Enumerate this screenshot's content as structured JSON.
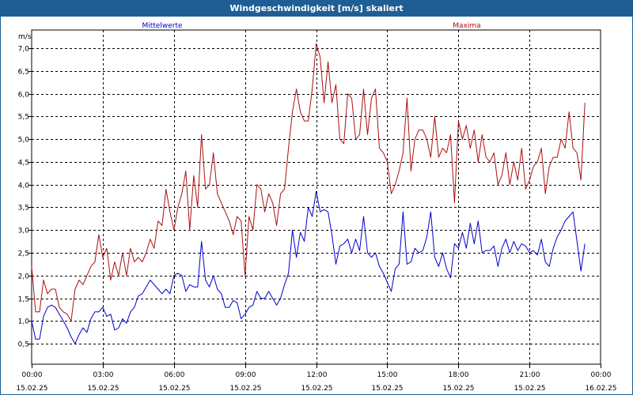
{
  "window": {
    "title": "Windgeschwindigkeit [m/s] skaliert"
  },
  "chart_data": {
    "type": "line",
    "title": "Windgeschwindigkeit [m/s] skaliert",
    "ylabel": "m/s",
    "ylim": [
      0.05,
      7.4
    ],
    "yticks": [
      0.5,
      1.0,
      1.5,
      2.0,
      2.5,
      3.0,
      3.5,
      4.0,
      4.5,
      5.0,
      5.5,
      6.0,
      6.5,
      7.0
    ],
    "ytick_labels": [
      "0,5",
      "1,0",
      "1,5",
      "2,0",
      "2,5",
      "3,0",
      "3,5",
      "4,0",
      "4,5",
      "5,0",
      "5,5",
      "6,0",
      "6,5",
      "7,0"
    ],
    "xlim": [
      0,
      24
    ],
    "xticks": [
      0,
      3,
      6,
      9,
      12,
      15,
      18,
      21,
      24
    ],
    "xtick_time_labels": [
      "00:00",
      "03:00",
      "06:00",
      "09:00",
      "12:00",
      "15:00",
      "18:00",
      "21:00",
      "00:00"
    ],
    "xtick_date_labels": [
      "15.02.25",
      "15.02.25",
      "15.02.25",
      "15.02.25",
      "15.02.25",
      "15.02.25",
      "15.02.25",
      "15.02.25",
      "16.02.25"
    ],
    "grid": true,
    "series": [
      {
        "name": "Mittelwerte",
        "color": "#0000cc",
        "x_step_hours": 0.1667,
        "values": [
          1.0,
          0.6,
          0.6,
          1.1,
          1.3,
          1.35,
          1.3,
          1.15,
          1.0,
          0.85,
          0.65,
          0.5,
          0.7,
          0.85,
          0.75,
          1.05,
          1.2,
          1.2,
          1.3,
          1.1,
          1.15,
          0.8,
          0.85,
          1.05,
          0.95,
          1.2,
          1.3,
          1.55,
          1.6,
          1.75,
          1.9,
          1.8,
          1.7,
          1.6,
          1.7,
          1.6,
          2.0,
          2.05,
          2.0,
          1.65,
          1.8,
          1.75,
          1.75,
          2.75,
          1.9,
          1.75,
          2.0,
          1.7,
          1.6,
          1.3,
          1.3,
          1.45,
          1.4,
          1.05,
          1.15,
          1.3,
          1.35,
          1.65,
          1.5,
          1.5,
          1.65,
          1.5,
          1.35,
          1.5,
          1.8,
          2.05,
          3.0,
          2.4,
          2.95,
          2.75,
          3.5,
          3.3,
          3.85,
          3.4,
          3.45,
          3.4,
          2.9,
          2.25,
          2.65,
          2.7,
          2.8,
          2.5,
          2.8,
          2.55,
          3.3,
          2.5,
          2.4,
          2.5,
          2.2,
          2.05,
          1.85,
          1.65,
          2.15,
          2.25,
          3.4,
          2.25,
          2.3,
          2.6,
          2.5,
          2.55,
          2.85,
          3.4,
          2.4,
          2.2,
          2.5,
          2.15,
          1.95,
          2.7,
          2.6,
          2.95,
          2.6,
          3.15,
          2.7,
          3.2,
          2.5,
          2.55,
          2.55,
          2.65,
          2.2,
          2.6,
          2.8,
          2.5,
          2.75,
          2.55,
          2.7,
          2.65,
          2.5,
          2.55,
          2.45,
          2.8,
          2.3,
          2.2,
          2.6,
          2.85,
          3.0,
          3.2,
          3.3,
          3.4,
          2.75,
          2.1,
          2.7
        ]
      },
      {
        "name": "Maxima",
        "color": "#aa1111",
        "x_step_hours": 0.1667,
        "values": [
          2.2,
          1.2,
          1.2,
          1.9,
          1.6,
          1.7,
          1.7,
          1.3,
          1.2,
          1.15,
          1.0,
          1.7,
          1.9,
          1.8,
          2.0,
          2.2,
          2.3,
          2.9,
          2.4,
          2.6,
          1.9,
          2.3,
          2.0,
          2.5,
          2.0,
          2.6,
          2.3,
          2.4,
          2.3,
          2.5,
          2.8,
          2.6,
          3.2,
          3.1,
          3.9,
          3.4,
          3.0,
          3.5,
          3.8,
          4.3,
          3.0,
          4.2,
          3.5,
          5.1,
          3.9,
          4.0,
          4.7,
          3.8,
          3.6,
          3.4,
          3.2,
          2.9,
          3.3,
          3.2,
          2.0,
          3.3,
          3.0,
          4.0,
          3.9,
          3.4,
          3.8,
          3.6,
          3.1,
          3.8,
          3.9,
          4.8,
          5.6,
          6.1,
          5.6,
          5.4,
          5.4,
          6.1,
          7.1,
          6.8,
          5.8,
          6.7,
          5.8,
          6.2,
          5.0,
          4.9,
          6.0,
          5.9,
          5.0,
          5.1,
          6.1,
          5.1,
          5.9,
          6.1,
          4.8,
          4.7,
          4.5,
          3.8,
          4.0,
          4.3,
          4.7,
          5.9,
          4.3,
          5.0,
          5.2,
          5.2,
          5.0,
          4.6,
          5.5,
          4.6,
          4.8,
          4.7,
          5.1,
          3.6,
          5.4,
          5.0,
          5.3,
          4.8,
          5.2,
          4.5,
          5.1,
          4.6,
          4.5,
          4.7,
          4.0,
          4.2,
          4.7,
          4.0,
          4.5,
          4.1,
          4.8,
          3.9,
          4.1,
          4.4,
          4.5,
          4.8,
          3.8,
          4.4,
          4.6,
          4.6,
          5.0,
          4.8,
          5.6,
          4.8,
          4.7,
          4.1,
          5.8
        ]
      }
    ]
  }
}
